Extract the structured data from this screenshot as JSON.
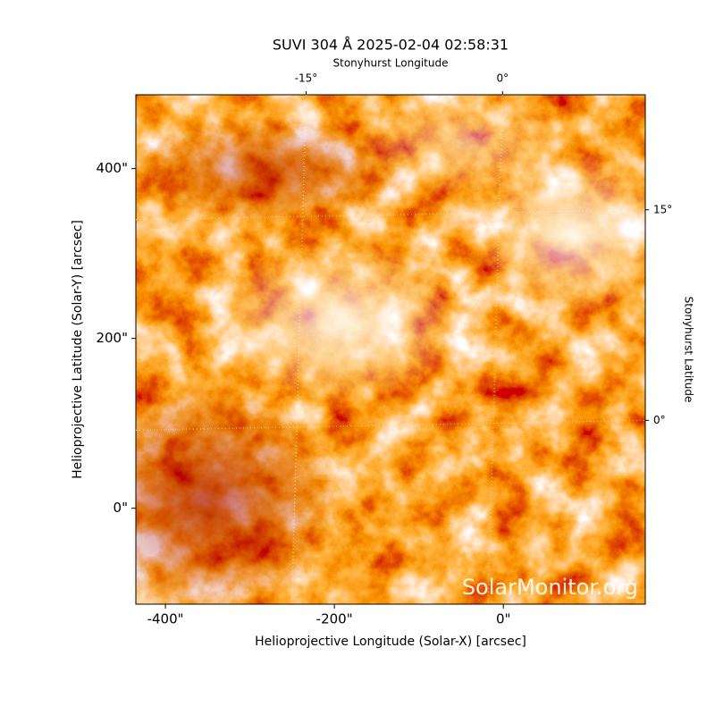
{
  "chart_data": {
    "type": "image",
    "title": "SUVI 304 Å 2025-02-04 02:58:31",
    "xlabel": "Helioprojective Longitude (Solar-X) [arcsec]",
    "ylabel": "Helioprojective Latitude (Solar-Y) [arcsec]",
    "x2label": "Stonyhurst Longitude",
    "y2label": "Stonyhurst Latitude",
    "watermark": "SolarMonitor.org",
    "xlim": [
      -435,
      168
    ],
    "ylim": [
      -113,
      487
    ],
    "xticks": [
      {
        "value": -400,
        "label": "-400\""
      },
      {
        "value": -200,
        "label": "-200\""
      },
      {
        "value": 0,
        "label": "0\""
      }
    ],
    "yticks": [
      {
        "value": 0,
        "label": "0\""
      },
      {
        "value": 200,
        "label": "200\""
      },
      {
        "value": 400,
        "label": "400\""
      }
    ],
    "x2lim": [
      -28,
      10.9
    ],
    "y2lim": [
      -13.1,
      23.2
    ],
    "x2ticks": [
      {
        "value": -15,
        "label": "-15°"
      },
      {
        "value": 0,
        "label": "0°"
      }
    ],
    "y2ticks": [
      {
        "value": 0,
        "label": "0°"
      },
      {
        "value": 15,
        "label": "15°"
      }
    ],
    "grid": true
  }
}
